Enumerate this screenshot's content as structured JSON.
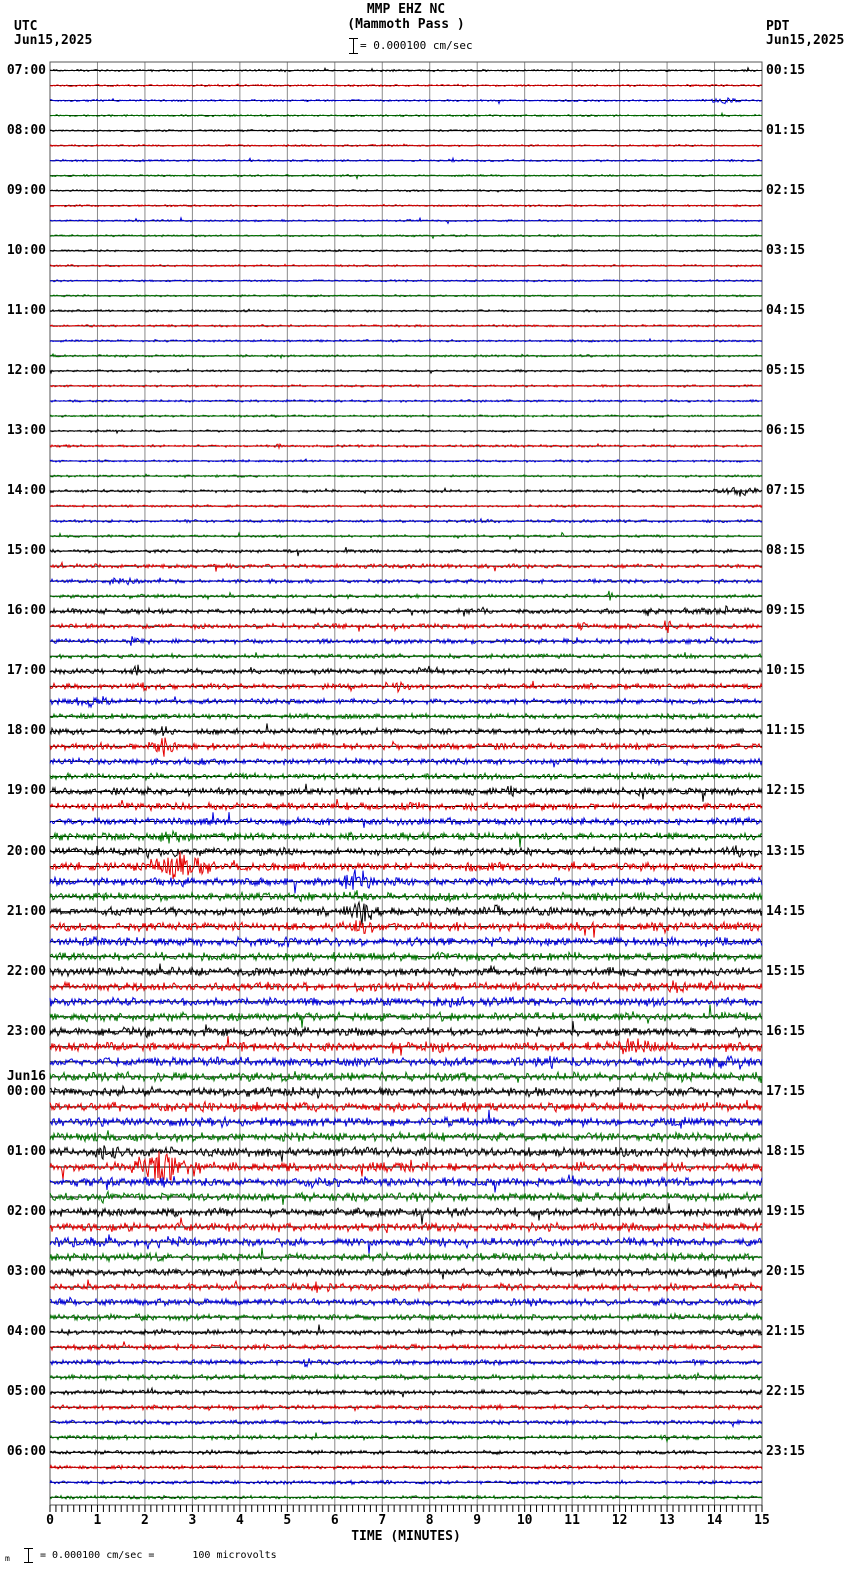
{
  "header": {
    "station": "MMP EHZ NC",
    "location": "(Mammoth Pass )",
    "scale_text": "= 0.000100 cm/sec",
    "left_tz": "UTC",
    "left_date": "Jun15,2025",
    "right_tz": "PDT",
    "right_date": "Jun15,2025"
  },
  "footer": {
    "prefix": "m",
    "scale_text": "= 0.000100 cm/sec =",
    "equiv_text": "100 microvolts"
  },
  "xaxis": {
    "label": "TIME (MINUTES)",
    "tick_labels": [
      "0",
      "1",
      "2",
      "3",
      "4",
      "5",
      "6",
      "7",
      "8",
      "9",
      "10",
      "11",
      "12",
      "13",
      "14",
      "15"
    ]
  },
  "colors": {
    "trace_cycle": [
      "#000000",
      "#e60000",
      "#0000dd",
      "#007700"
    ],
    "baseline": "#000000",
    "grid": "#8a8a8a",
    "frame": "#555555",
    "text": "#000000"
  },
  "chart_data": {
    "type": "line",
    "description": "24-hour helicorder seismogram; 96 traces, each 15 minutes, colors cycling black/red/blue/green; background noise rises in the afternoon and overnight with several event bursts",
    "start_utc": "Jun15,2025 07:00 UTC",
    "end_utc": "Jun16,2025 07:00 UTC",
    "minutes_per_trace": 15,
    "rows": 96,
    "utc_hour_labels": [
      "07:00",
      "08:00",
      "09:00",
      "10:00",
      "11:00",
      "12:00",
      "13:00",
      "14:00",
      "15:00",
      "16:00",
      "17:00",
      "18:00",
      "19:00",
      "20:00",
      "21:00",
      "22:00",
      "23:00",
      "00:00",
      "01:00",
      "02:00",
      "03:00",
      "04:00",
      "05:00",
      "06:00"
    ],
    "utc_day_change": {
      "label": "Jun16",
      "before": "00:00"
    },
    "pdt_hour_labels": [
      "00:15",
      "01:15",
      "02:15",
      "03:15",
      "04:15",
      "05:15",
      "06:15",
      "07:15",
      "08:15",
      "09:15",
      "10:15",
      "11:15",
      "12:15",
      "13:15",
      "14:15",
      "15:15",
      "16:15",
      "17:15",
      "18:15",
      "19:15",
      "20:15",
      "21:15",
      "22:15",
      "23:15"
    ],
    "noise_profile": [
      0.7,
      0.7,
      0.7,
      0.7,
      0.7,
      0.7,
      0.7,
      0.7,
      0.7,
      0.7,
      0.7,
      0.7,
      0.7,
      0.7,
      0.7,
      0.7,
      0.8,
      0.8,
      0.8,
      0.8,
      0.8,
      0.8,
      0.8,
      0.8,
      0.8,
      0.9,
      0.8,
      0.8,
      1.0,
      0.9,
      1.0,
      0.9,
      1.2,
      1.5,
      1.4,
      1.3,
      1.8,
      1.8,
      1.7,
      1.6,
      1.9,
      2.0,
      2.0,
      1.9,
      2.2,
      2.3,
      2.2,
      2.2,
      2.5,
      2.6,
      2.6,
      2.7,
      2.8,
      2.9,
      2.9,
      2.9,
      3.0,
      3.0,
      3.0,
      3.0,
      3.0,
      3.0,
      3.0,
      3.0,
      3.0,
      3.1,
      3.2,
      3.2,
      3.2,
      3.2,
      3.2,
      3.2,
      3.2,
      3.2,
      3.1,
      3.1,
      3.0,
      3.0,
      3.0,
      2.9,
      2.6,
      2.5,
      2.4,
      2.3,
      2.0,
      1.9,
      1.8,
      1.8,
      1.6,
      1.6,
      1.5,
      1.5,
      1.4,
      1.3,
      1.3,
      1.2
    ],
    "events": [
      [
        2,
        14.2,
        0.18,
        3.5
      ],
      [
        6,
        8.45,
        0.07,
        3
      ],
      [
        13,
        0.45,
        0.05,
        2
      ],
      [
        25,
        4.8,
        0.05,
        2.5
      ],
      [
        28,
        14.5,
        0.3,
        5
      ],
      [
        30,
        9.0,
        0.25,
        2
      ],
      [
        34,
        1.6,
        0.25,
        4
      ],
      [
        35,
        11.8,
        0.05,
        5
      ],
      [
        36,
        13.9,
        0.6,
        3.5
      ],
      [
        36,
        12.6,
        0.05,
        4
      ],
      [
        37,
        13.0,
        0.05,
        8
      ],
      [
        37,
        11.2,
        0.07,
        5
      ],
      [
        38,
        1.7,
        0.1,
        5
      ],
      [
        40,
        1.85,
        0.1,
        6
      ],
      [
        40,
        8.0,
        0.25,
        3
      ],
      [
        41,
        7.45,
        0.22,
        5
      ],
      [
        41,
        2.0,
        0.18,
        4
      ],
      [
        42,
        0.95,
        0.3,
        4
      ],
      [
        43,
        2.15,
        0.08,
        4
      ],
      [
        44,
        2.3,
        0.12,
        4
      ],
      [
        45,
        2.35,
        0.18,
        11
      ],
      [
        46,
        14.05,
        0.08,
        5
      ],
      [
        48,
        9.7,
        0.07,
        6
      ],
      [
        48,
        2.0,
        0.25,
        3
      ],
      [
        49,
        7.7,
        0.25,
        3
      ],
      [
        51,
        2.6,
        0.35,
        5
      ],
      [
        51,
        6.4,
        0.12,
        4
      ],
      [
        52,
        2.5,
        0.45,
        4
      ],
      [
        52,
        14.6,
        0.25,
        5
      ],
      [
        53,
        2.75,
        0.5,
        13
      ],
      [
        53,
        9.0,
        0.18,
        4
      ],
      [
        54,
        6.45,
        0.2,
        13
      ],
      [
        55,
        6.5,
        0.18,
        5
      ],
      [
        56,
        6.5,
        0.22,
        12
      ],
      [
        56,
        9.4,
        0.18,
        5
      ],
      [
        57,
        6.5,
        0.25,
        6
      ],
      [
        58,
        5.0,
        0.15,
        4
      ],
      [
        60,
        9.3,
        0.12,
        4
      ],
      [
        61,
        13.2,
        0.18,
        4
      ],
      [
        62,
        8.4,
        0.25,
        4
      ],
      [
        64,
        2.0,
        0.18,
        4
      ],
      [
        65,
        12.3,
        0.5,
        6
      ],
      [
        65,
        8.2,
        0.25,
        4
      ],
      [
        65,
        14.3,
        0.08,
        7
      ],
      [
        66,
        14.2,
        0.35,
        5
      ],
      [
        66,
        10.5,
        0.25,
        4
      ],
      [
        68,
        5.6,
        0.08,
        4
      ],
      [
        68,
        1.5,
        0.18,
        3
      ],
      [
        70,
        3.7,
        0.05,
        9
      ],
      [
        70,
        13.4,
        0.25,
        5
      ],
      [
        71,
        1.15,
        0.08,
        5
      ],
      [
        72,
        1.2,
        0.2,
        8
      ],
      [
        73,
        2.4,
        0.45,
        14
      ],
      [
        73,
        14.3,
        0.08,
        6
      ],
      [
        74,
        2.4,
        0.25,
        4
      ],
      [
        75,
        1.2,
        0.18,
        4
      ],
      [
        78,
        0.8,
        0.35,
        4
      ],
      [
        78,
        2.6,
        0.25,
        4
      ],
      [
        79,
        2.4,
        0.12,
        5
      ],
      [
        81,
        5.6,
        0.25,
        4
      ],
      [
        82,
        0.3,
        0.18,
        3
      ],
      [
        86,
        5.4,
        0.06,
        6
      ],
      [
        88,
        2.1,
        0.08,
        3
      ]
    ]
  }
}
